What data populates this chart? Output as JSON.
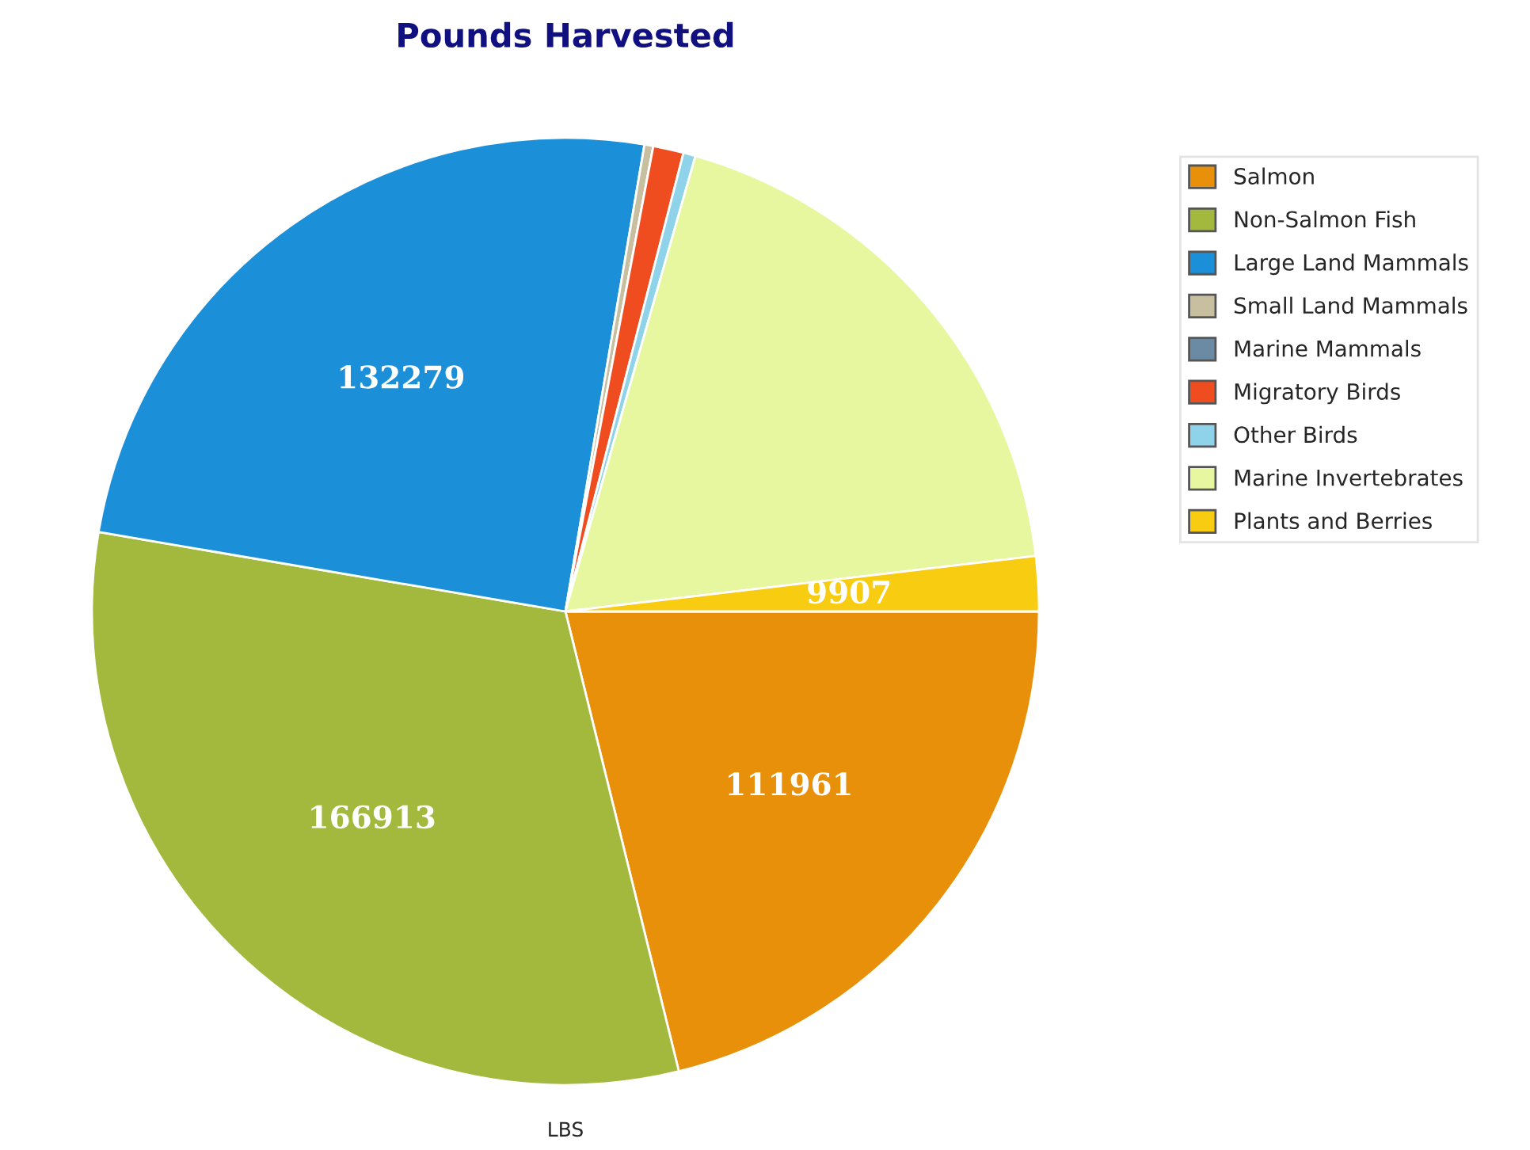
{
  "chart_data": {
    "type": "pie",
    "title": "Pounds Harvested",
    "xlabel": "LBS",
    "categories": [
      "Salmon",
      "Non-Salmon Fish",
      "Large Land Mammals",
      "Small Land Mammals",
      "Marine Mammals",
      "Migratory Birds",
      "Other Birds",
      "Marine Invertebrates",
      "Plants and Berries"
    ],
    "values": [
      111961,
      166913,
      132279,
      1600,
      null,
      5500,
      2200,
      99000,
      9907
    ],
    "value_labels": [
      "111961",
      "166913",
      "132279",
      null,
      null,
      null,
      null,
      null,
      "9907"
    ],
    "colors": [
      "#e8900a",
      "#a3b93e",
      "#1b8fd8",
      "#c8bfa0",
      "#6b8ba4",
      "#ef4d20",
      "#8ed3ea",
      "#e6f7a0",
      "#f8cc10"
    ],
    "legend": "top right"
  }
}
